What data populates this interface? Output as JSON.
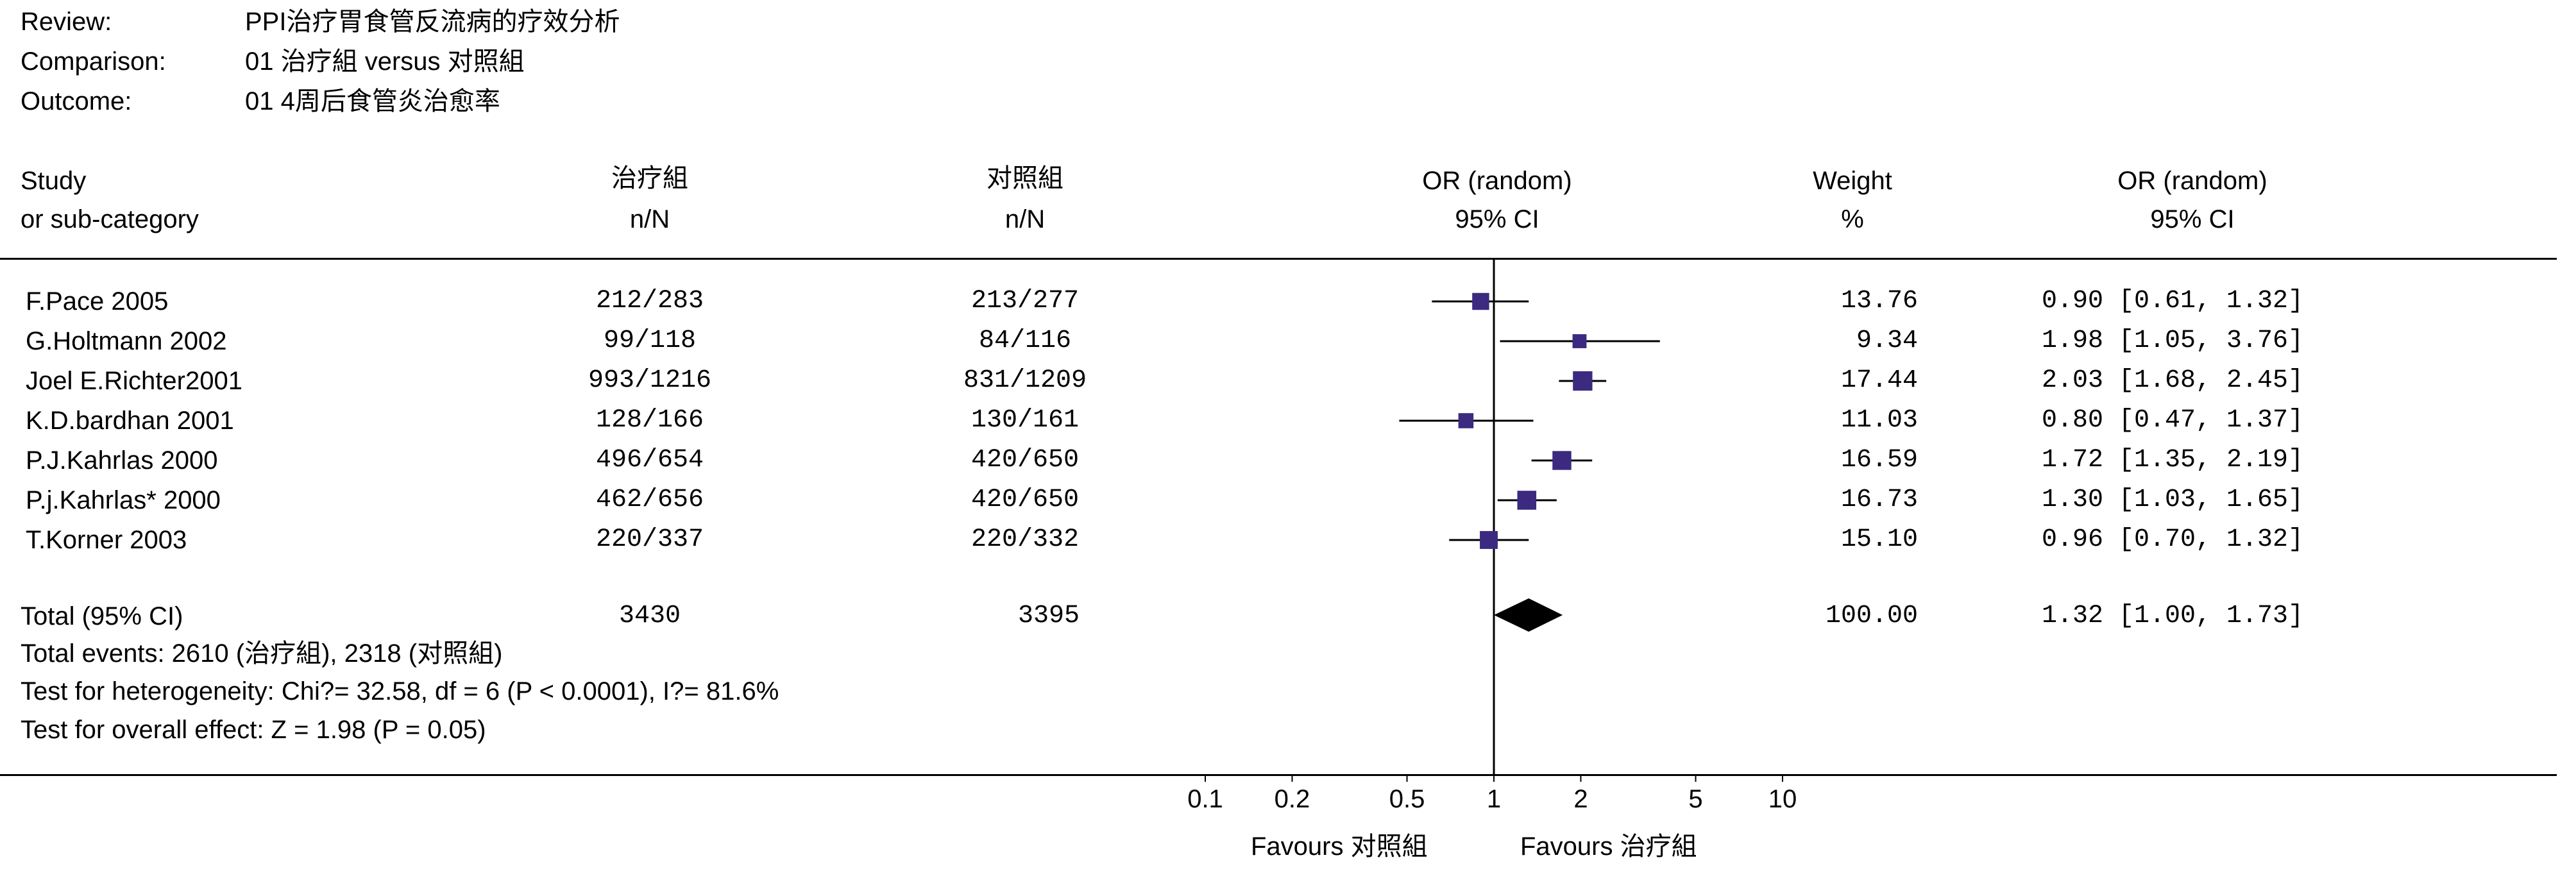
{
  "header": {
    "review_label": "Review:",
    "review_value": "PPI治疗胃食管反流病的疗效分析",
    "comparison_label": "Comparison:",
    "comparison_value": "01 治疗組 versus 对照組",
    "outcome_label": "Outcome:",
    "outcome_value": "01 4周后食管炎治愈率"
  },
  "columns": {
    "study_1": "Study",
    "study_2": "or sub-category",
    "treat_1": "治疗組",
    "treat_2": "n/N",
    "control_1": "对照組",
    "control_2": "n/N",
    "plot_1": "OR (random)",
    "plot_2": "95% CI",
    "weight_1": "Weight",
    "weight_2": "%",
    "or_1": "OR (random)",
    "or_2": "95% CI"
  },
  "colors": {
    "marker": "#3b2a80",
    "line": "#000000",
    "text_data": "#000033"
  },
  "total": {
    "label": "Total (95% CI)",
    "treat_n": "3430",
    "control_n": "3395",
    "weight": "100.00",
    "ci_text": "1.32 [1.00, 1.73]",
    "events": "Total events: 2610 (治疗組), 2318 (对照組)",
    "heterogeneity": "Test for heterogeneity: Chi?= 32.58, df = 6 (P < 0.0001), I?= 81.6%",
    "overall": "Test for overall effect: Z = 1.98 (P = 0.05)"
  },
  "chart_data": {
    "type": "forest",
    "x_scale": "log",
    "xlim": [
      0.1,
      10
    ],
    "ticks": [
      "0.1",
      "0.2",
      "0.5",
      "1",
      "2",
      "5",
      "10"
    ],
    "tick_values": [
      0.1,
      0.2,
      0.5,
      1,
      2,
      5,
      10
    ],
    "favours_left": "Favours 对照組",
    "favours_right": "Favours 治疗組",
    "studies": [
      {
        "name": "F.Pace 2005",
        "treat": "212/283",
        "control": "213/277",
        "weight": 13.76,
        "weight_text": "13.76",
        "or": 0.9,
        "lo": 0.61,
        "hi": 1.32,
        "ci_text": "0.90 [0.61, 1.32]"
      },
      {
        "name": "G.Holtmann 2002",
        "treat": "99/118",
        "control": "84/116",
        "weight": 9.34,
        "weight_text": "9.34",
        "or": 1.98,
        "lo": 1.05,
        "hi": 3.76,
        "ci_text": "1.98 [1.05, 3.76]"
      },
      {
        "name": "Joel E.Richter2001",
        "treat": "993/1216",
        "control": "831/1209",
        "weight": 17.44,
        "weight_text": "17.44",
        "or": 2.03,
        "lo": 1.68,
        "hi": 2.45,
        "ci_text": "2.03 [1.68, 2.45]"
      },
      {
        "name": "K.D.bardhan 2001",
        "treat": "128/166",
        "control": "130/161",
        "weight": 11.03,
        "weight_text": "11.03",
        "or": 0.8,
        "lo": 0.47,
        "hi": 1.37,
        "ci_text": "0.80 [0.47, 1.37]"
      },
      {
        "name": "P.J.Kahrlas 2000",
        "treat": "496/654",
        "control": "420/650",
        "weight": 16.59,
        "weight_text": "16.59",
        "or": 1.72,
        "lo": 1.35,
        "hi": 2.19,
        "ci_text": "1.72 [1.35, 2.19]"
      },
      {
        "name": "P.j.Kahrlas* 2000",
        "treat": "462/656",
        "control": "420/650",
        "weight": 16.73,
        "weight_text": "16.73",
        "or": 1.3,
        "lo": 1.03,
        "hi": 1.65,
        "ci_text": "1.30 [1.03, 1.65]"
      },
      {
        "name": "T.Korner 2003",
        "treat": "220/337",
        "control": "220/332",
        "weight": 15.1,
        "weight_text": "15.10",
        "or": 0.96,
        "lo": 0.7,
        "hi": 1.32,
        "ci_text": "0.96 [0.70, 1.32]"
      }
    ],
    "pooled": {
      "or": 1.32,
      "lo": 1.0,
      "hi": 1.73
    }
  }
}
